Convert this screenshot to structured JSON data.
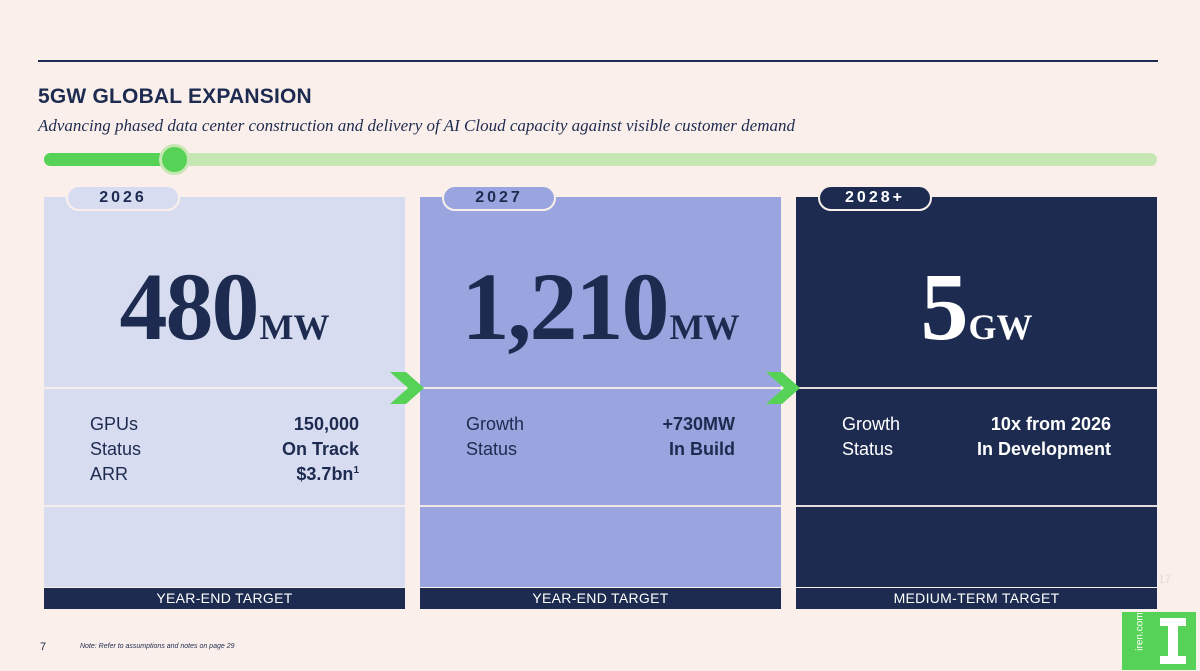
{
  "header": {
    "title": "5GW GLOBAL EXPANSION",
    "subtitle": "Advancing phased data center construction and delivery of AI Cloud capacity against visible customer demand"
  },
  "timeline": {
    "progress": 0.12
  },
  "cards": [
    {
      "year": "2026",
      "value": "480",
      "unit": "MW",
      "rows": [
        {
          "label": "GPUs",
          "value": "150,000",
          "sup": ""
        },
        {
          "label": "Status",
          "value": "On Track",
          "sup": ""
        },
        {
          "label": "ARR",
          "value": "$3.7bn",
          "sup": "1"
        }
      ],
      "footer": "YEAR-END TARGET"
    },
    {
      "year": "2027",
      "value": "1,210",
      "unit": "MW",
      "rows": [
        {
          "label": "Growth",
          "value": "+730MW",
          "sup": ""
        },
        {
          "label": "Status",
          "value": "In Build",
          "sup": ""
        }
      ],
      "footer": "YEAR-END TARGET"
    },
    {
      "year": "2028+",
      "value": "5",
      "unit": "GW",
      "rows": [
        {
          "label": "Growth",
          "value": "10x from 2026",
          "sup": ""
        },
        {
          "label": "Status",
          "value": "In Development",
          "sup": ""
        }
      ],
      "footer": "MEDIUM-TERM TARGET"
    }
  ],
  "footer": {
    "page_number": "7",
    "note": "Note: Refer to assumptions and notes on page 29",
    "faint_number": "17",
    "logo_url": "iren.com"
  },
  "colors": {
    "background": "#fbefeb",
    "navy": "#1c2b4f",
    "accent_green": "#56d256",
    "light_green": "#c6e6b3",
    "card_light": "#d8dcf0",
    "card_mid": "#9aa5df"
  },
  "icons": [
    "chevron-right-icon",
    "chevron-right-icon",
    "iren-logo-icon"
  ]
}
